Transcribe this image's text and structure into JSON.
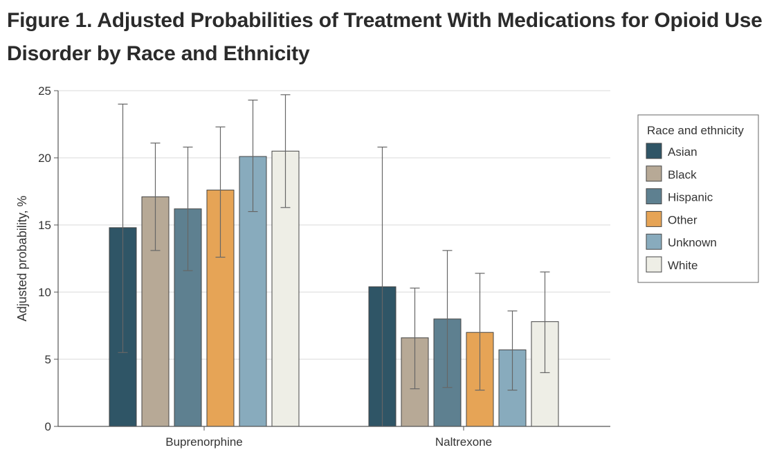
{
  "figure": {
    "title": "Figure 1.  Adjusted Probabilities of Treatment With Medications for Opioid Use Disorder by Race and Ethnicity"
  },
  "chart_data": {
    "type": "bar",
    "title": "Figure 1.  Adjusted Probabilities of Treatment With Medications for Opioid Use Disorder by Race and Ethnicity",
    "xlabel": "",
    "ylabel": "Adjusted probability, %",
    "ylim": [
      0,
      25
    ],
    "yticks": [
      0,
      5,
      10,
      15,
      20,
      25
    ],
    "grid": true,
    "categories": [
      "Buprenorphine",
      "Naltrexone"
    ],
    "legend": {
      "title": "Race and ethnicity",
      "placement": "right"
    },
    "series": [
      {
        "name": "Asian",
        "color": "#2f5566",
        "values": [
          14.8,
          10.4
        ],
        "ci_low": [
          5.5,
          0
        ],
        "ci_high": [
          24.0,
          20.8
        ]
      },
      {
        "name": "Black",
        "color": "#b7a996",
        "values": [
          17.1,
          6.6
        ],
        "ci_low": [
          13.1,
          2.8
        ],
        "ci_high": [
          21.1,
          10.3
        ]
      },
      {
        "name": "Hispanic",
        "color": "#5e8090",
        "values": [
          16.2,
          8.0
        ],
        "ci_low": [
          11.6,
          2.9
        ],
        "ci_high": [
          20.8,
          13.1
        ]
      },
      {
        "name": "Other",
        "color": "#e6a456",
        "values": [
          17.6,
          7.0
        ],
        "ci_low": [
          12.6,
          2.7
        ],
        "ci_high": [
          22.3,
          11.4
        ]
      },
      {
        "name": "Unknown",
        "color": "#88abbd",
        "values": [
          20.1,
          5.7
        ],
        "ci_low": [
          16.0,
          2.7
        ],
        "ci_high": [
          24.3,
          8.6
        ]
      },
      {
        "name": "White",
        "color": "#eeeee6",
        "values": [
          20.5,
          7.8
        ],
        "ci_low": [
          16.3,
          4.0
        ],
        "ci_high": [
          24.7,
          11.5
        ]
      }
    ]
  }
}
